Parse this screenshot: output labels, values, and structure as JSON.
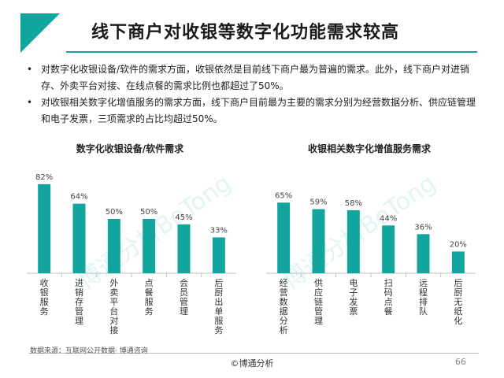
{
  "title": "线下商户对收银等数字化功能需求较高",
  "bullets": [
    "对数字化收银设备/软件的需求方面，收银依然是目前线下商户最为普遍的需求。此外，线下商户对进销存、外卖平台对接、在线点餐的需求比例也都超过了50%。",
    "对收银相关数字化增值服务的需求方面，线下商户目前最为主要的需求分别为经营数据分析、供应链管理和电子发票，三项需求的占比均超过50%。"
  ],
  "bullet_symbol": "•",
  "watermark": "博通分析BoTong",
  "colors": {
    "accent": "#12a5a0",
    "bar": "#12a5a0"
  },
  "chart_data": [
    {
      "type": "bar",
      "title": "数字化收银设备/软件需求",
      "categories": [
        "收银服务",
        "进销存管理",
        "外卖平台对接",
        "点餐服务",
        "会员管理",
        "后厨出单服务"
      ],
      "values": [
        82,
        64,
        50,
        50,
        45,
        33
      ],
      "value_labels": [
        "82%",
        "64%",
        "50%",
        "50%",
        "45%",
        "33%"
      ],
      "ylim": [
        0,
        100
      ],
      "grid": false
    },
    {
      "type": "bar",
      "title": "收银相关数字化增值服务需求",
      "categories": [
        "经营数据分析",
        "供应链管理",
        "电子发票",
        "扫码点餐",
        "远程排队",
        "后厨无纸化"
      ],
      "values": [
        65,
        59,
        58,
        44,
        36,
        20
      ],
      "value_labels": [
        "65%",
        "59%",
        "58%",
        "44%",
        "36%",
        "20%"
      ],
      "ylim": [
        0,
        100
      ],
      "grid": false
    }
  ],
  "source": "数据来源：互联网公开数据· 博通咨询",
  "footer": "©博通分析",
  "page_number": "66"
}
